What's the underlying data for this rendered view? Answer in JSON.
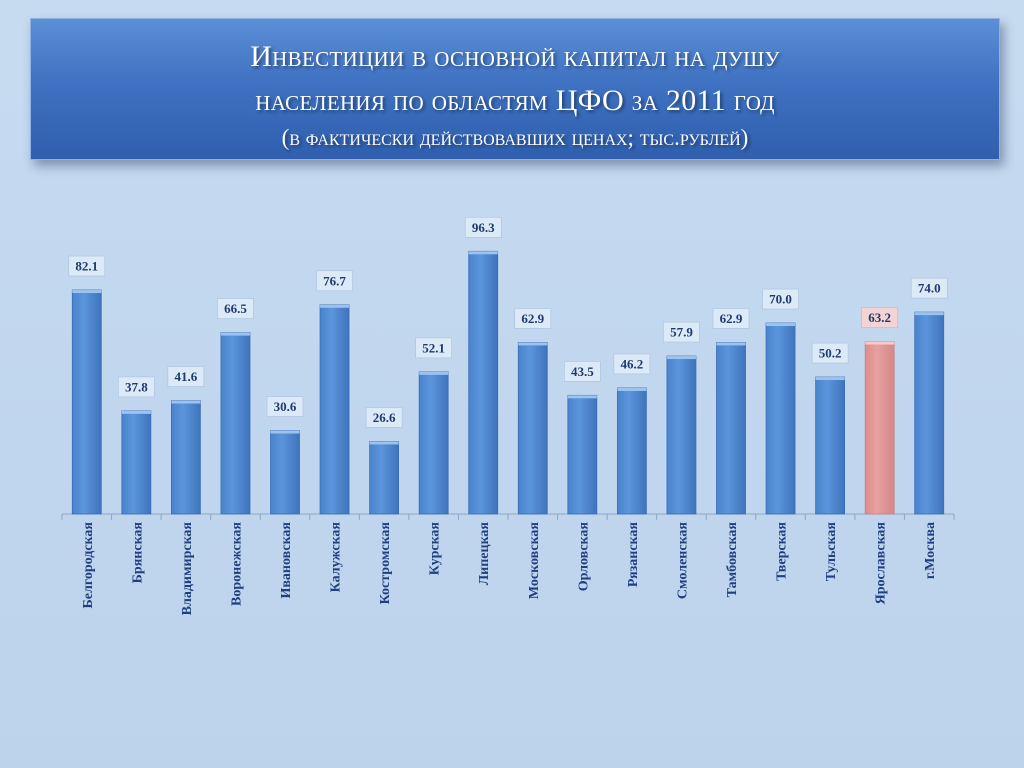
{
  "title": {
    "line1": "Инвестиции в основной капитал на душу",
    "line2": "населения по областям ЦФО за 2011 год",
    "line3": "(в фактически действовавших ценах; тыс.рублей)"
  },
  "chart_data": {
    "type": "bar",
    "categories": [
      "Белгородская",
      "Брянская",
      "Владимирская",
      "Воронежская",
      "Ивановская",
      "Калужская",
      "Костромская",
      "Курская",
      "Липецкая",
      "Московская",
      "Орловская",
      "Рязанская",
      "Смоленская",
      "Тамбовская",
      "Тверская",
      "Тульская",
      "Ярославская",
      "г.Москва"
    ],
    "values": [
      82.1,
      37.8,
      41.6,
      66.5,
      30.6,
      76.7,
      26.6,
      52.1,
      96.3,
      62.9,
      43.5,
      46.2,
      57.9,
      62.9,
      70.0,
      50.2,
      63.2,
      74.0
    ],
    "data_labels": [
      "82.1",
      "37.8",
      "41.6",
      "66.5",
      "30.6",
      "76.7",
      "26.6",
      "52.1",
      "96.3",
      "62.9",
      "43.5",
      "46.2",
      "57.9",
      "62.9",
      "70.0",
      "50.2",
      "63.2",
      "74.0"
    ],
    "highlight_category": "Ярославская",
    "ylim": [
      0,
      100
    ],
    "grid": false,
    "legend": "none",
    "colors": {
      "bar": "#5b95db",
      "bar_highlight": "#e8a0a0",
      "label_bg": "#dce9f7",
      "label_bg_highlight": "#f3d3d3"
    }
  }
}
